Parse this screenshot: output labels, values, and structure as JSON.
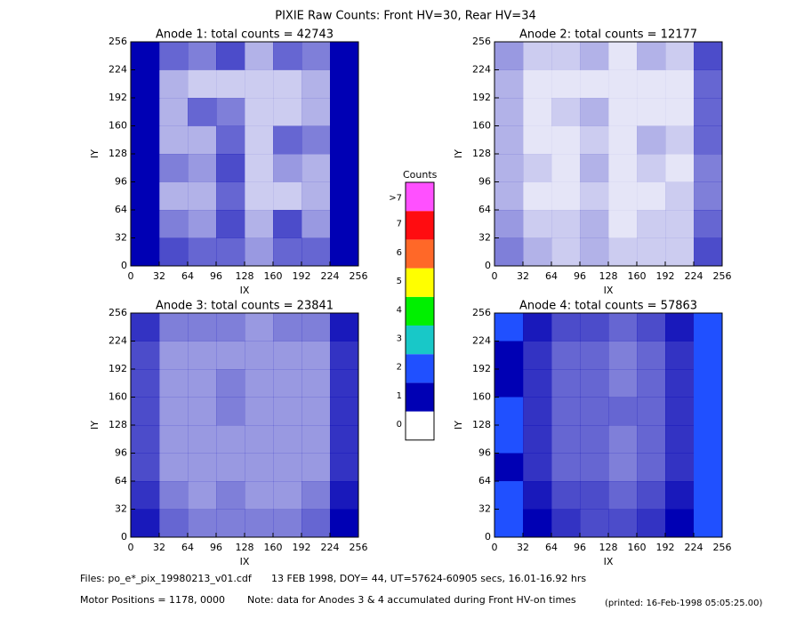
{
  "title": "PIXIE Raw Counts:  Front HV=30, Rear HV=34",
  "chart_data": [
    {
      "type": "heatmap",
      "title": "Anode 1: total counts = 42743",
      "xlabel": "IX",
      "ylabel": "IY",
      "xlim": [
        0,
        256
      ],
      "ylim": [
        0,
        256
      ],
      "xticks": [
        0,
        32,
        64,
        96,
        128,
        160,
        192,
        224,
        256
      ],
      "yticks": [
        0,
        32,
        64,
        96,
        128,
        160,
        192,
        224,
        256
      ],
      "values": [
        [
          1.2,
          0.6,
          0.5,
          0.7,
          0.3,
          0.6,
          0.5,
          1.4
        ],
        [
          1.0,
          0.3,
          0.2,
          0.2,
          0.2,
          0.2,
          0.3,
          1.3
        ],
        [
          1.1,
          0.3,
          0.6,
          0.5,
          0.2,
          0.2,
          0.3,
          1.2
        ],
        [
          1.0,
          0.3,
          0.3,
          0.6,
          0.2,
          0.6,
          0.5,
          1.3
        ],
        [
          1.1,
          0.5,
          0.4,
          0.7,
          0.2,
          0.4,
          0.3,
          1.2
        ],
        [
          1.0,
          0.3,
          0.3,
          0.6,
          0.2,
          0.2,
          0.3,
          1.2
        ],
        [
          1.2,
          0.5,
          0.4,
          0.7,
          0.3,
          0.7,
          0.4,
          1.3
        ],
        [
          1.5,
          0.7,
          0.6,
          0.6,
          0.4,
          0.6,
          0.6,
          1.6
        ]
      ]
    },
    {
      "type": "heatmap",
      "title": "Anode 2: total counts = 12177",
      "xlabel": "IX",
      "ylabel": "IY",
      "xlim": [
        0,
        256
      ],
      "ylim": [
        0,
        256
      ],
      "xticks": [
        0,
        32,
        64,
        96,
        128,
        160,
        192,
        224,
        256
      ],
      "yticks": [
        0,
        32,
        64,
        96,
        128,
        160,
        192,
        224,
        256
      ],
      "values": [
        [
          0.4,
          0.2,
          0.2,
          0.3,
          0.1,
          0.3,
          0.2,
          0.7
        ],
        [
          0.3,
          0.1,
          0.1,
          0.1,
          0.1,
          0.1,
          0.1,
          0.6
        ],
        [
          0.3,
          0.1,
          0.2,
          0.3,
          0.1,
          0.1,
          0.1,
          0.6
        ],
        [
          0.3,
          0.1,
          0.1,
          0.2,
          0.1,
          0.3,
          0.2,
          0.6
        ],
        [
          0.3,
          0.2,
          0.1,
          0.3,
          0.1,
          0.2,
          0.1,
          0.5
        ],
        [
          0.3,
          0.1,
          0.1,
          0.2,
          0.1,
          0.1,
          0.2,
          0.5
        ],
        [
          0.4,
          0.2,
          0.2,
          0.3,
          0.1,
          0.2,
          0.2,
          0.6
        ],
        [
          0.5,
          0.3,
          0.2,
          0.3,
          0.2,
          0.2,
          0.2,
          0.7
        ]
      ]
    },
    {
      "type": "heatmap",
      "title": "Anode 3: total counts = 23841",
      "xlabel": "IX",
      "ylabel": "IY",
      "xlim": [
        0,
        256
      ],
      "ylim": [
        0,
        256
      ],
      "xticks": [
        0,
        32,
        64,
        96,
        128,
        160,
        192,
        224,
        256
      ],
      "yticks": [
        0,
        32,
        64,
        96,
        128,
        160,
        192,
        224,
        256
      ],
      "values": [
        [
          0.8,
          0.5,
          0.5,
          0.5,
          0.4,
          0.5,
          0.5,
          0.9
        ],
        [
          0.7,
          0.4,
          0.4,
          0.4,
          0.4,
          0.4,
          0.4,
          0.8
        ],
        [
          0.7,
          0.4,
          0.4,
          0.5,
          0.4,
          0.4,
          0.4,
          0.8
        ],
        [
          0.7,
          0.4,
          0.4,
          0.5,
          0.4,
          0.4,
          0.4,
          0.8
        ],
        [
          0.7,
          0.4,
          0.4,
          0.4,
          0.4,
          0.4,
          0.4,
          0.8
        ],
        [
          0.7,
          0.4,
          0.4,
          0.4,
          0.4,
          0.4,
          0.4,
          0.8
        ],
        [
          0.8,
          0.5,
          0.4,
          0.5,
          0.4,
          0.4,
          0.5,
          0.9
        ],
        [
          0.9,
          0.6,
          0.5,
          0.5,
          0.5,
          0.5,
          0.6,
          1.0
        ]
      ]
    },
    {
      "type": "heatmap",
      "title": "Anode 4: total counts = 57863",
      "xlabel": "IX",
      "ylabel": "IY",
      "xlim": [
        0,
        256
      ],
      "ylim": [
        0,
        256
      ],
      "xticks": [
        0,
        32,
        64,
        96,
        128,
        160,
        192,
        224,
        256
      ],
      "yticks": [
        0,
        32,
        64,
        96,
        128,
        160,
        192,
        224,
        256
      ],
      "values": [
        [
          2.0,
          0.9,
          0.7,
          0.7,
          0.6,
          0.7,
          0.9,
          2.2
        ],
        [
          1.9,
          0.8,
          0.6,
          0.6,
          0.5,
          0.6,
          0.8,
          2.1
        ],
        [
          1.9,
          0.8,
          0.6,
          0.6,
          0.5,
          0.6,
          0.8,
          2.2
        ],
        [
          2.0,
          0.8,
          0.6,
          0.6,
          0.6,
          0.6,
          0.8,
          2.3
        ],
        [
          2.1,
          0.8,
          0.6,
          0.6,
          0.5,
          0.6,
          0.8,
          2.2
        ],
        [
          1.9,
          0.8,
          0.6,
          0.6,
          0.5,
          0.6,
          0.8,
          2.1
        ],
        [
          2.0,
          0.9,
          0.7,
          0.7,
          0.6,
          0.7,
          0.9,
          2.2
        ],
        [
          2.2,
          1.0,
          0.8,
          0.7,
          0.7,
          0.8,
          1.0,
          2.4
        ]
      ]
    }
  ],
  "colorbar": {
    "title": "Counts",
    "levels": [
      0,
      1,
      2,
      3,
      4,
      5,
      6,
      7
    ],
    "overflow_label": ">7",
    "colors": [
      "#ffffff",
      "#0000b4",
      "#2050ff",
      "#18c8c8",
      "#00f000",
      "#ffff00",
      "#ff6828",
      "#ff0c10",
      "#ff50ff"
    ]
  },
  "footer": {
    "files": "Files: po_e*_pix_19980213_v01.cdf",
    "date_info": "13 FEB 1998, DOY= 44, UT=57624-60905 secs, 16.01-16.92 hrs",
    "motor": "Motor Positions = 1178, 0000",
    "note": "Note: data for Anodes 3 & 4 accumulated during Front HV-on times",
    "printed": "(printed: 16-Feb-1998 05:05:25.00)"
  }
}
